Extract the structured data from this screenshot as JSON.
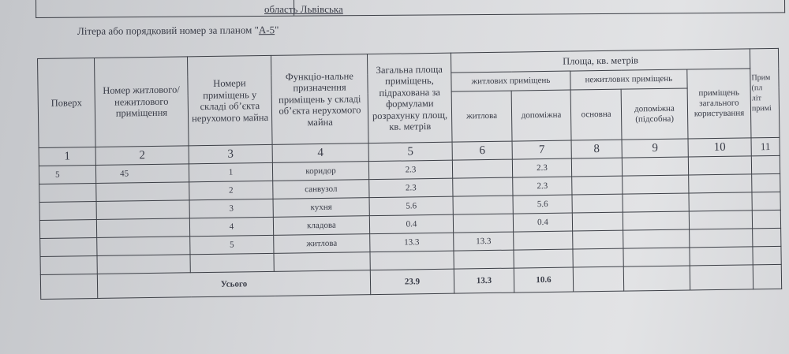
{
  "header": {
    "region": "область  Львівська",
    "litera_prefix": "Літера або порядковий номер за планом \"",
    "litera_value": "А-5",
    "litera_suffix": "\""
  },
  "table": {
    "columns": {
      "floor": "Поверх",
      "unit_number": "Номер житлового/ нежитлового приміщення",
      "room_numbers": "Номери приміщень у складі об’єкта нерухомого майна",
      "function": "Функціо-нальне призначення приміщень у складі об’єкта нерухомого майна",
      "total_area": "Загальна площа приміщень, підрахована за формулами розрахунку площ, кв. метрів",
      "area_group": "Площа, кв. метрів",
      "residential_group": "житлових приміщень",
      "nonresidential_group": "нежитлових приміщень",
      "living": "житлова",
      "auxiliary": "допоміжна",
      "main": "основна",
      "aux_nonres": "допоміжна (підсобна)",
      "common_use": "приміщень загального користування",
      "note_partial": [
        "Прим",
        "(пл",
        "літ",
        "примі"
      ]
    },
    "column_numbers": [
      "1",
      "2",
      "3",
      "4",
      "5",
      "6",
      "7",
      "8",
      "9",
      "10",
      "11"
    ],
    "rows": [
      {
        "floor": "5",
        "unit": "45",
        "room": "1",
        "function": "коридор",
        "total": "2.3",
        "living": "",
        "auxiliary": "2.3"
      },
      {
        "floor": "",
        "unit": "",
        "room": "2",
        "function": "санвузол",
        "total": "2.3",
        "living": "",
        "auxiliary": "2.3"
      },
      {
        "floor": "",
        "unit": "",
        "room": "3",
        "function": "кухня",
        "total": "5.6",
        "living": "",
        "auxiliary": "5.6"
      },
      {
        "floor": "",
        "unit": "",
        "room": "4",
        "function": "кладова",
        "total": "0.4",
        "living": "",
        "auxiliary": "0.4"
      },
      {
        "floor": "",
        "unit": "",
        "room": "5",
        "function": "житлова",
        "total": "13.3",
        "living": "13.3",
        "auxiliary": ""
      },
      {
        "floor": "",
        "unit": "",
        "room": "",
        "function": "",
        "total": "",
        "living": "",
        "auxiliary": ""
      }
    ],
    "total": {
      "label": "Усього",
      "total": "23.9",
      "living": "13.3",
      "auxiliary": "10.6"
    }
  }
}
